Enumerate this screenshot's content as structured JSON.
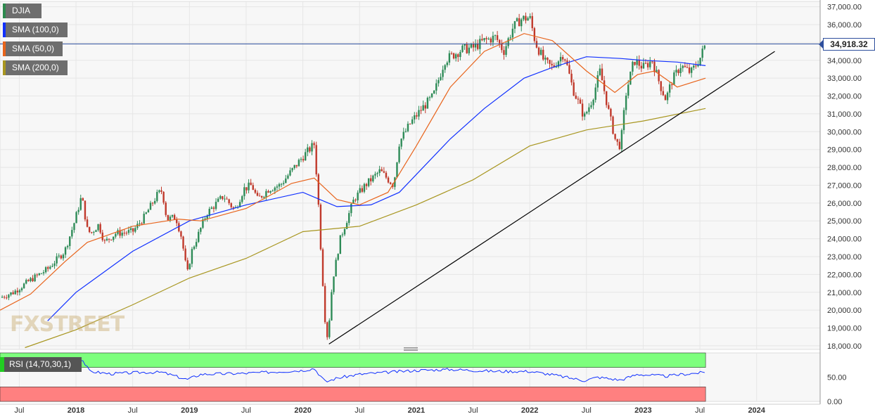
{
  "chart_data": {
    "type": "candlestick",
    "symbol": "DJIA",
    "last_price": 34918.32,
    "last_price_label": "34,918.32",
    "price_axis": {
      "ylim": [
        17800,
        37300
      ],
      "ticks": [
        18000,
        19000,
        20000,
        21000,
        22000,
        23000,
        24000,
        25000,
        26000,
        27000,
        28000,
        29000,
        30000,
        31000,
        32000,
        33000,
        34000,
        35000,
        36000,
        37000
      ],
      "tick_labels": [
        "18,000.00",
        "19,000.00",
        "20,000.00",
        "21,000.00",
        "22,000.00",
        "23,000.00",
        "24,000.00",
        "25,000.00",
        "26,000.00",
        "27,000.00",
        "28,000.00",
        "29,000.00",
        "30,000.00",
        "31,000.00",
        "32,000.00",
        "33,000.00",
        "34,000.00",
        "35,000.00",
        "36,000.00",
        "37,000.00"
      ]
    },
    "time_axis": {
      "xlim": [
        2017.33,
        2024.56
      ],
      "ticks": [
        2017.5,
        2018.0,
        2018.5,
        2019.0,
        2019.5,
        2020.0,
        2020.5,
        2021.0,
        2021.5,
        2022.0,
        2022.5,
        2023.0,
        2023.5,
        2024.0
      ],
      "tick_labels": [
        "Jul",
        "2018",
        "Jul",
        "2019",
        "Jul",
        "2020",
        "Jul",
        "2021",
        "Jul",
        "2022",
        "Jul",
        "2023",
        "Jul",
        "2024"
      ],
      "bold_ticks": [
        "2018",
        "2019",
        "2020",
        "2021",
        "2022",
        "2023",
        "2024"
      ]
    },
    "price_path": [
      [
        2017.33,
        20700
      ],
      [
        2017.45,
        21000
      ],
      [
        2017.6,
        21700
      ],
      [
        2017.75,
        22300
      ],
      [
        2017.9,
        23300
      ],
      [
        2017.98,
        24800
      ],
      [
        2018.05,
        26400
      ],
      [
        2018.1,
        24500
      ],
      [
        2018.13,
        24300
      ],
      [
        2018.2,
        24800
      ],
      [
        2018.25,
        23800
      ],
      [
        2018.35,
        24300
      ],
      [
        2018.5,
        24400
      ],
      [
        2018.6,
        25200
      ],
      [
        2018.72,
        26500
      ],
      [
        2018.76,
        26700
      ],
      [
        2018.8,
        25100
      ],
      [
        2018.88,
        25200
      ],
      [
        2018.93,
        24100
      ],
      [
        2018.98,
        22000
      ],
      [
        2019.02,
        23300
      ],
      [
        2019.15,
        25400
      ],
      [
        2019.3,
        26400
      ],
      [
        2019.4,
        25600
      ],
      [
        2019.48,
        26800
      ],
      [
        2019.55,
        27000
      ],
      [
        2019.6,
        26200
      ],
      [
        2019.7,
        26800
      ],
      [
        2019.8,
        27000
      ],
      [
        2019.9,
        27800
      ],
      [
        2020.0,
        28600
      ],
      [
        2020.1,
        29300
      ],
      [
        2020.13,
        26800
      ],
      [
        2020.16,
        23200
      ],
      [
        2020.2,
        19000
      ],
      [
        2020.22,
        18400
      ],
      [
        2020.26,
        21600
      ],
      [
        2020.33,
        24000
      ],
      [
        2020.45,
        26200
      ],
      [
        2020.55,
        27000
      ],
      [
        2020.68,
        27800
      ],
      [
        2020.8,
        27000
      ],
      [
        2020.85,
        29400
      ],
      [
        2020.95,
        30500
      ],
      [
        2021.05,
        31300
      ],
      [
        2021.15,
        32000
      ],
      [
        2021.25,
        34000
      ],
      [
        2021.4,
        34600
      ],
      [
        2021.5,
        34700
      ],
      [
        2021.6,
        35100
      ],
      [
        2021.7,
        35300
      ],
      [
        2021.77,
        34500
      ],
      [
        2021.85,
        35800
      ],
      [
        2021.92,
        36300
      ],
      [
        2022.0,
        36400
      ],
      [
        2022.05,
        35000
      ],
      [
        2022.13,
        33900
      ],
      [
        2022.2,
        33600
      ],
      [
        2022.3,
        34400
      ],
      [
        2022.38,
        32400
      ],
      [
        2022.45,
        31300
      ],
      [
        2022.48,
        30800
      ],
      [
        2022.55,
        31800
      ],
      [
        2022.62,
        33400
      ],
      [
        2022.7,
        31000
      ],
      [
        2022.76,
        29400
      ],
      [
        2022.8,
        29200
      ],
      [
        2022.85,
        32200
      ],
      [
        2022.92,
        34000
      ],
      [
        2023.0,
        33600
      ],
      [
        2023.08,
        34000
      ],
      [
        2023.15,
        32600
      ],
      [
        2023.2,
        31800
      ],
      [
        2023.25,
        32800
      ],
      [
        2023.33,
        33700
      ],
      [
        2023.42,
        33300
      ],
      [
        2023.5,
        34100
      ],
      [
        2023.55,
        34918
      ]
    ],
    "series": [
      {
        "name": "SMA (100,0)",
        "color": "#1030ff",
        "values": [
          [
            2017.75,
            19400
          ],
          [
            2018.0,
            21000
          ],
          [
            2018.5,
            23300
          ],
          [
            2019.0,
            25000
          ],
          [
            2019.5,
            25900
          ],
          [
            2020.0,
            26600
          ],
          [
            2020.15,
            26200
          ],
          [
            2020.3,
            25800
          ],
          [
            2020.6,
            25900
          ],
          [
            2020.85,
            26600
          ],
          [
            2021.0,
            27600
          ],
          [
            2021.3,
            29600
          ],
          [
            2021.6,
            31300
          ],
          [
            2021.95,
            33000
          ],
          [
            2022.2,
            33600
          ],
          [
            2022.5,
            34200
          ],
          [
            2022.8,
            34100
          ],
          [
            2023.0,
            34000
          ],
          [
            2023.3,
            33900
          ],
          [
            2023.55,
            33700
          ]
        ]
      },
      {
        "name": "SMA (50,0)",
        "color": "#e8641c",
        "values": [
          [
            2017.33,
            20000
          ],
          [
            2017.6,
            20900
          ],
          [
            2017.9,
            22700
          ],
          [
            2018.1,
            23800
          ],
          [
            2018.5,
            24700
          ],
          [
            2018.9,
            25100
          ],
          [
            2019.1,
            25000
          ],
          [
            2019.5,
            25700
          ],
          [
            2019.9,
            27100
          ],
          [
            2020.1,
            27400
          ],
          [
            2020.3,
            26200
          ],
          [
            2020.5,
            25900
          ],
          [
            2020.75,
            26600
          ],
          [
            2021.0,
            29200
          ],
          [
            2021.3,
            32500
          ],
          [
            2021.6,
            34500
          ],
          [
            2021.95,
            35500
          ],
          [
            2022.2,
            35100
          ],
          [
            2022.5,
            33400
          ],
          [
            2022.75,
            32200
          ],
          [
            2022.95,
            33200
          ],
          [
            2023.1,
            33400
          ],
          [
            2023.3,
            32500
          ],
          [
            2023.55,
            33000
          ]
        ]
      },
      {
        "name": "SMA (200,0)",
        "color": "#a89620",
        "values": [
          [
            2017.55,
            17900
          ],
          [
            2018.0,
            18900
          ],
          [
            2018.5,
            20300
          ],
          [
            2019.0,
            21800
          ],
          [
            2019.5,
            22900
          ],
          [
            2020.0,
            24400
          ],
          [
            2020.5,
            24700
          ],
          [
            2021.0,
            25900
          ],
          [
            2021.5,
            27300
          ],
          [
            2022.0,
            29200
          ],
          [
            2022.5,
            30100
          ],
          [
            2023.0,
            30600
          ],
          [
            2023.55,
            31300
          ]
        ]
      },
      {
        "name": "Trendline",
        "color": "#000000",
        "values": [
          [
            2020.23,
            18100
          ],
          [
            2024.16,
            34500
          ]
        ]
      }
    ],
    "rsi": {
      "label": "RSI (14,70,30,1)",
      "ylim": [
        0,
        100
      ],
      "overbought": 70,
      "oversold": 30,
      "tick_labels": [
        "50.00",
        "0.00"
      ],
      "ticks": [
        50,
        0
      ],
      "path": [
        [
          2017.33,
          72
        ],
        [
          2017.9,
          73
        ],
        [
          2018.05,
          88
        ],
        [
          2018.12,
          62
        ],
        [
          2018.3,
          57
        ],
        [
          2018.6,
          60
        ],
        [
          2018.76,
          60
        ],
        [
          2018.98,
          45
        ],
        [
          2019.1,
          56
        ],
        [
          2019.5,
          58
        ],
        [
          2020.0,
          64
        ],
        [
          2020.1,
          68
        ],
        [
          2020.2,
          40
        ],
        [
          2020.3,
          48
        ],
        [
          2020.5,
          56
        ],
        [
          2021.0,
          64
        ],
        [
          2021.3,
          66
        ],
        [
          2021.7,
          62
        ],
        [
          2022.0,
          62
        ],
        [
          2022.2,
          55
        ],
        [
          2022.48,
          43
        ],
        [
          2022.6,
          50
        ],
        [
          2022.8,
          44
        ],
        [
          2022.95,
          56
        ],
        [
          2023.2,
          52
        ],
        [
          2023.35,
          56
        ],
        [
          2023.55,
          60
        ]
      ]
    },
    "legend": [
      {
        "label": "DJIA",
        "color": "#2d8a4e"
      },
      {
        "label": "SMA (100,0)",
        "color": "#1030ff"
      },
      {
        "label": "SMA (50,0)",
        "color": "#e8641c"
      },
      {
        "label": "SMA (200,0)",
        "color": "#a89620"
      }
    ],
    "watermark": "FXSTREET",
    "grid": true
  }
}
